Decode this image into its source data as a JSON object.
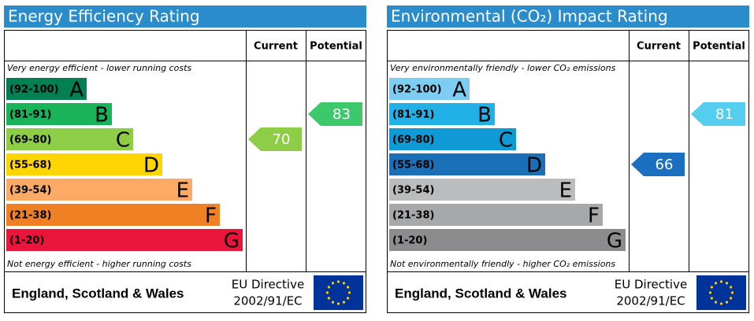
{
  "chart_data": [
    {
      "type": "epc-rating",
      "title": "Energy Efficiency Rating",
      "current_header": "Current",
      "potential_header": "Potential",
      "top_note": "Very energy efficient - lower running costs",
      "bottom_note": "Not energy efficient - higher running costs",
      "bands": [
        {
          "range": {
            "min": 92,
            "max": 100,
            "label": "(92-100)"
          },
          "letter": "A",
          "color": "#008054"
        },
        {
          "range": {
            "min": 81,
            "max": 91,
            "label": "(81-91)"
          },
          "letter": "B",
          "color": "#19b459"
        },
        {
          "range": {
            "min": 69,
            "max": 80,
            "label": "(69-80)"
          },
          "letter": "C",
          "color": "#8dce46"
        },
        {
          "range": {
            "min": 55,
            "max": 68,
            "label": "(55-68)"
          },
          "letter": "D",
          "color": "#ffd500"
        },
        {
          "range": {
            "min": 39,
            "max": 54,
            "label": "(39-54)"
          },
          "letter": "E",
          "color": "#fcaa65"
        },
        {
          "range": {
            "min": 21,
            "max": 38,
            "label": "(21-38)"
          },
          "letter": "F",
          "color": "#ef8023"
        },
        {
          "range": {
            "min": 1,
            "max": 20,
            "label": "(1-20)"
          },
          "letter": "G",
          "color": "#e9153b"
        }
      ],
      "current": {
        "value": 70,
        "color": "#8dce46"
      },
      "potential": {
        "value": 83,
        "color": "#3dc96b"
      },
      "region": "England, Scotland & Wales",
      "directive": "EU Directive",
      "directive_code": "2002/91/EC"
    },
    {
      "type": "epc-rating",
      "title": "Environmental (CO₂) Impact Rating",
      "current_header": "Current",
      "potential_header": "Potential",
      "top_note": "Very environmentally friendly - lower CO₂ emissions",
      "bottom_note": "Not environmentally friendly - higher CO₂ emissions",
      "bands": [
        {
          "range": {
            "min": 92,
            "max": 100,
            "label": "(92-100)"
          },
          "letter": "A",
          "color": "#7ccdf1"
        },
        {
          "range": {
            "min": 81,
            "max": 91,
            "label": "(81-91)"
          },
          "letter": "B",
          "color": "#22b1e6"
        },
        {
          "range": {
            "min": 69,
            "max": 80,
            "label": "(69-80)"
          },
          "letter": "C",
          "color": "#0f9ad6"
        },
        {
          "range": {
            "min": 55,
            "max": 68,
            "label": "(55-68)"
          },
          "letter": "D",
          "color": "#1a6fb7"
        },
        {
          "range": {
            "min": 39,
            "max": 54,
            "label": "(39-54)"
          },
          "letter": "E",
          "color": "#bbbcbe"
        },
        {
          "range": {
            "min": 21,
            "max": 38,
            "label": "(21-38)"
          },
          "letter": "F",
          "color": "#a7a8aa"
        },
        {
          "range": {
            "min": 1,
            "max": 20,
            "label": "(1-20)"
          },
          "letter": "G",
          "color": "#8c8c8e"
        }
      ],
      "current": {
        "value": 66,
        "color": "#1b6fc0"
      },
      "potential": {
        "value": 81,
        "color": "#55cdef"
      },
      "region": "England, Scotland & Wales",
      "directive": "EU Directive",
      "directive_code": "2002/91/EC"
    }
  ]
}
